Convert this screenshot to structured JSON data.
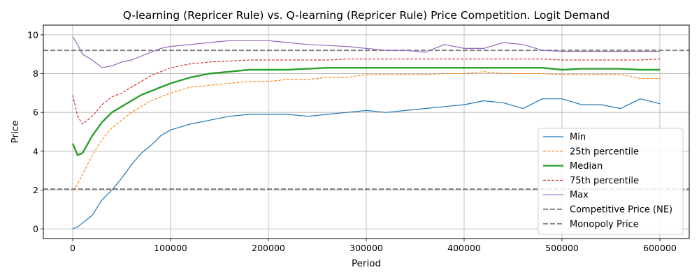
{
  "chart_data": {
    "type": "line",
    "title": "Q-learning (Repricer Rule) vs. Q-learning (Repricer Rule) Price Competition. Logit Demand",
    "xlabel": "Period",
    "ylabel": "Price",
    "xlim": [
      -30000,
      630000
    ],
    "ylim": [
      -0.5,
      10.5
    ],
    "xticks": [
      0,
      100000,
      200000,
      300000,
      400000,
      500000,
      600000
    ],
    "xtick_labels": [
      "0",
      "100000",
      "200000",
      "300000",
      "400000",
      "500000",
      "600000"
    ],
    "yticks": [
      0,
      2,
      4,
      6,
      8,
      10
    ],
    "ytick_labels": [
      "0",
      "2",
      "4",
      "6",
      "8",
      "10"
    ],
    "grid": true,
    "legend_position": "lower-right",
    "x": [
      0,
      5000,
      10000,
      20000,
      30000,
      40000,
      50000,
      60000,
      70000,
      80000,
      90000,
      100000,
      120000,
      140000,
      160000,
      180000,
      200000,
      220000,
      240000,
      260000,
      280000,
      300000,
      320000,
      340000,
      360000,
      380000,
      400000,
      420000,
      440000,
      460000,
      480000,
      500000,
      520000,
      540000,
      560000,
      580000,
      600000
    ],
    "series": [
      {
        "name": "Min",
        "color": "#1f77b4",
        "style": "solid",
        "width": 1.2,
        "values": [
          0.0,
          0.1,
          0.3,
          0.7,
          1.5,
          2.0,
          2.6,
          3.3,
          3.9,
          4.3,
          4.8,
          5.1,
          5.4,
          5.6,
          5.8,
          5.9,
          5.9,
          5.9,
          5.8,
          5.9,
          6.0,
          6.1,
          6.0,
          6.1,
          6.2,
          6.3,
          6.4,
          6.6,
          6.5,
          6.2,
          6.7,
          6.7,
          6.4,
          6.4,
          6.2,
          6.7,
          6.45
        ]
      },
      {
        "name": "25th percentile",
        "color": "#ff7f0e",
        "style": "dashed",
        "width": 1.1,
        "values": [
          2.0,
          2.3,
          2.8,
          3.8,
          4.6,
          5.2,
          5.6,
          6.0,
          6.3,
          6.6,
          6.8,
          7.0,
          7.3,
          7.4,
          7.5,
          7.6,
          7.6,
          7.7,
          7.7,
          7.8,
          7.8,
          7.95,
          7.95,
          7.95,
          7.95,
          8.0,
          8.0,
          8.1,
          8.0,
          8.0,
          8.0,
          7.95,
          7.95,
          7.95,
          7.95,
          7.75,
          7.75
        ]
      },
      {
        "name": "Median",
        "color": "#2ca02c",
        "style": "solid",
        "width": 2.4,
        "values": [
          4.4,
          3.8,
          3.9,
          4.8,
          5.5,
          6.0,
          6.3,
          6.6,
          6.9,
          7.1,
          7.3,
          7.5,
          7.8,
          8.0,
          8.1,
          8.2,
          8.2,
          8.2,
          8.25,
          8.3,
          8.3,
          8.3,
          8.3,
          8.3,
          8.3,
          8.3,
          8.3,
          8.3,
          8.3,
          8.3,
          8.3,
          8.2,
          8.25,
          8.25,
          8.25,
          8.2,
          8.2
        ]
      },
      {
        "name": "75th percentile",
        "color": "#d62728",
        "style": "dashed",
        "width": 1.1,
        "values": [
          6.9,
          5.8,
          5.4,
          5.8,
          6.4,
          6.8,
          7.0,
          7.3,
          7.6,
          7.9,
          8.1,
          8.3,
          8.5,
          8.6,
          8.65,
          8.7,
          8.7,
          8.7,
          8.7,
          8.7,
          8.75,
          8.75,
          8.75,
          8.75,
          8.75,
          8.75,
          8.75,
          8.75,
          8.75,
          8.75,
          8.75,
          8.7,
          8.7,
          8.7,
          8.7,
          8.7,
          8.75
        ]
      },
      {
        "name": "Max",
        "color": "#9467bd",
        "style": "solid",
        "width": 1.2,
        "values": [
          9.9,
          9.5,
          9.0,
          8.7,
          8.3,
          8.4,
          8.6,
          8.7,
          8.9,
          9.1,
          9.3,
          9.4,
          9.5,
          9.6,
          9.7,
          9.7,
          9.7,
          9.6,
          9.5,
          9.45,
          9.4,
          9.3,
          9.2,
          9.2,
          9.1,
          9.5,
          9.3,
          9.3,
          9.6,
          9.5,
          9.2,
          9.15,
          9.15,
          9.15,
          9.15,
          9.15,
          9.15
        ]
      }
    ],
    "reference_lines": [
      {
        "name": "Competitive Price (NE)",
        "y": 2.05,
        "color": "#808080",
        "style": "dashed"
      },
      {
        "name": "Monopoly Price",
        "y": 9.2,
        "color": "#808080",
        "style": "dashed"
      }
    ]
  }
}
